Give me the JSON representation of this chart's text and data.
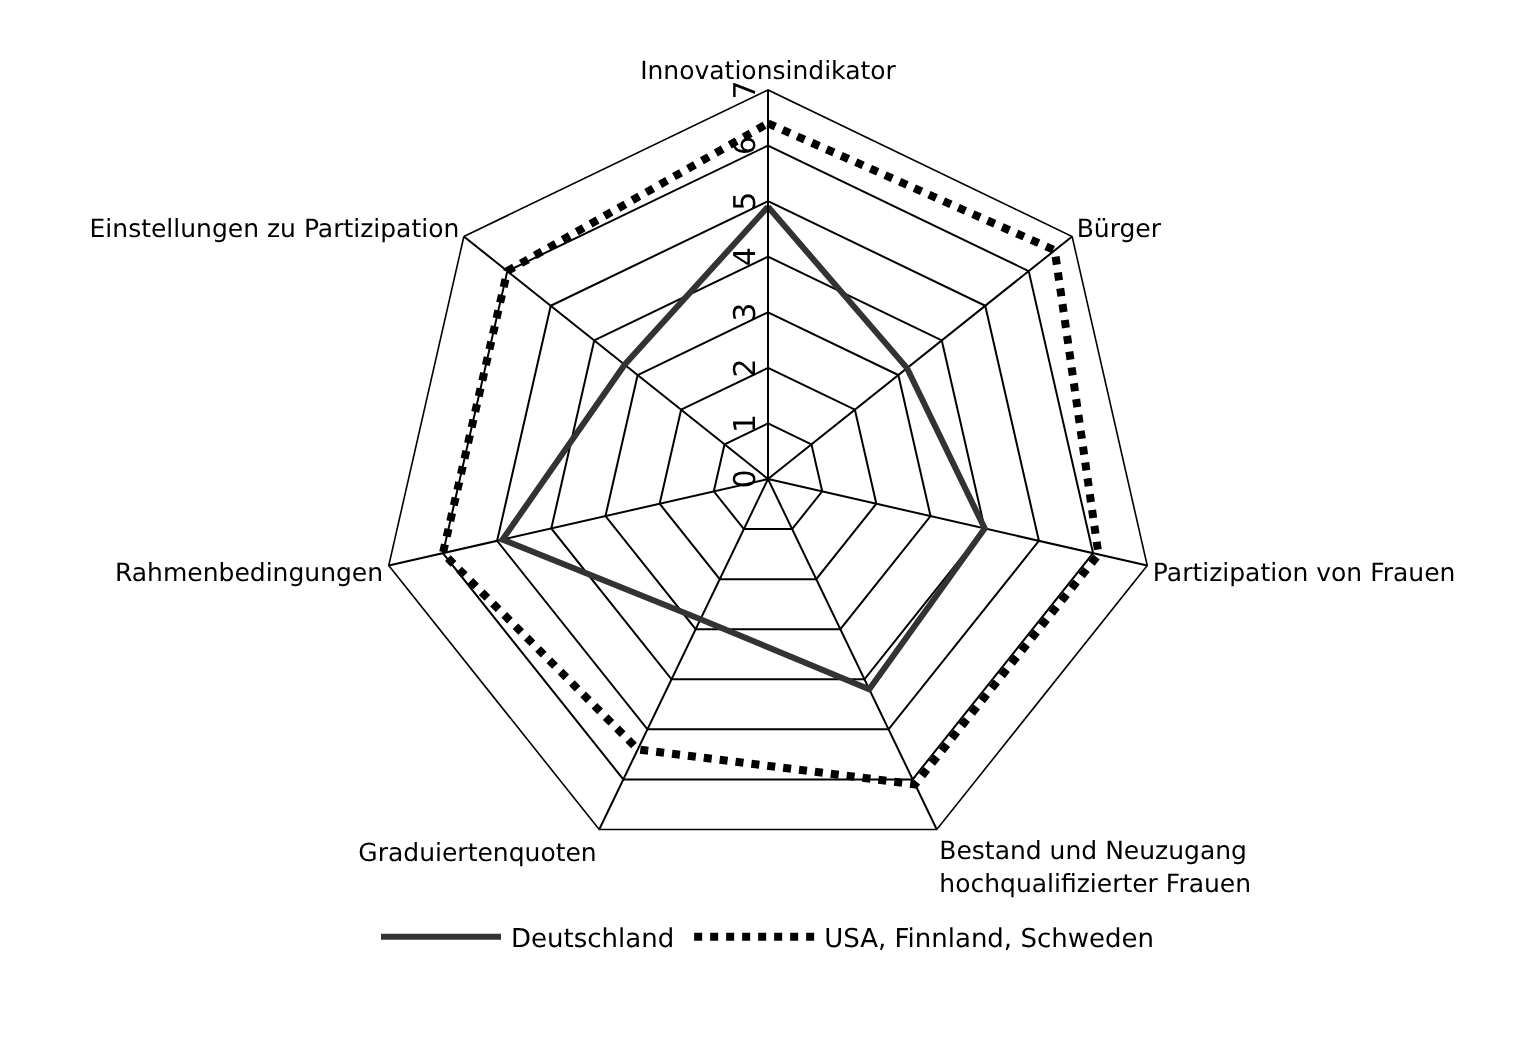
{
  "chart_data": {
    "type": "radar",
    "categories": [
      "Innovationsindikator",
      "Bürger",
      "Partizipation von Frauen",
      "Bestand und Neuzugang hochqualifizierter Frauen",
      "Graduiertenquoten",
      "Rahmenbedingungen",
      "Einstellungen zu Partizipation"
    ],
    "series": [
      {
        "name": "Deutschland",
        "color": "#333333",
        "line_style": "solid",
        "values": [
          4.9,
          3.2,
          4.0,
          4.2,
          2.8,
          4.9,
          3.3
        ]
      },
      {
        "name": "USA, Finnland, Schweden",
        "color": "#000000",
        "line_style": "dotted",
        "values": [
          6.4,
          6.6,
          6.1,
          6.1,
          5.4,
          6.0,
          6.0
        ]
      }
    ],
    "ylim": [
      0,
      7
    ],
    "yticks": [
      0,
      1,
      2,
      3,
      4,
      5,
      6,
      7
    ],
    "grid": true,
    "legend": "bottom",
    "marker": "none"
  }
}
